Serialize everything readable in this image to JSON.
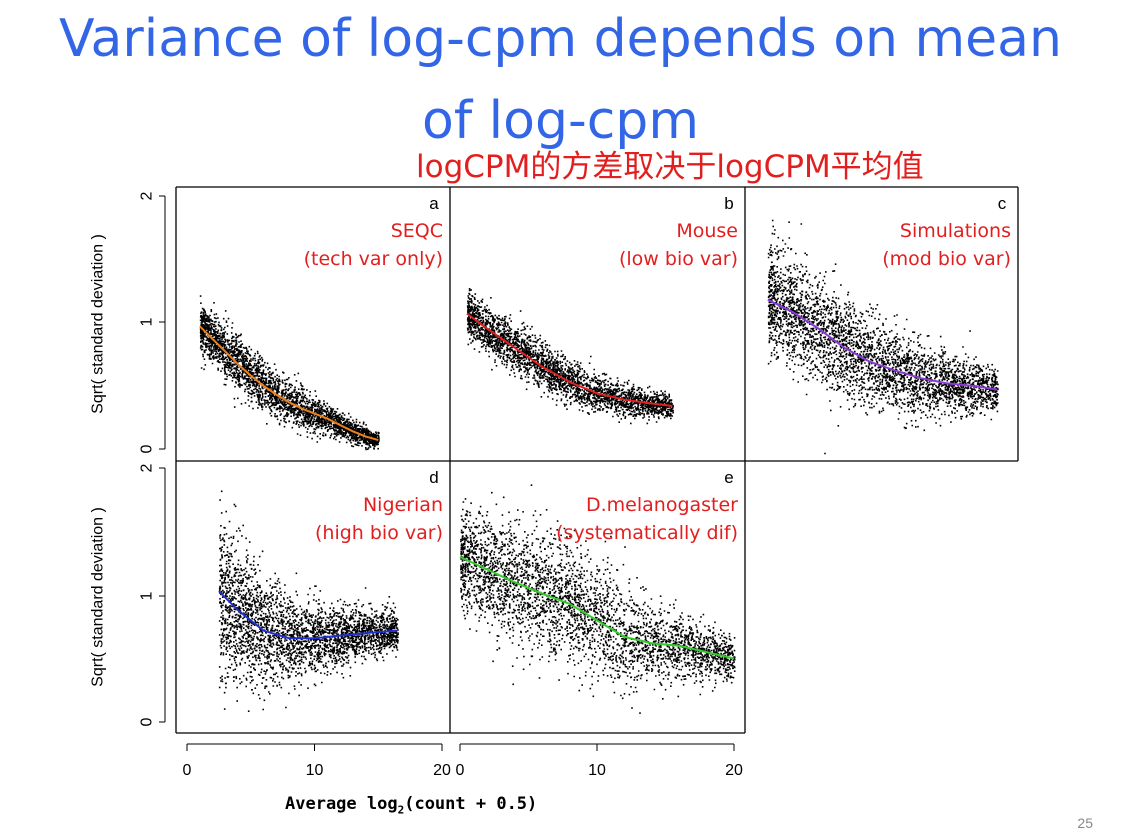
{
  "title_line1": "Variance of log-cpm depends on mean",
  "title_line2": "of log-cpm",
  "subtitle": "logCPM的方差取决于logCPM平均值",
  "xlabel_text": "Average log",
  "xlabel_sub": "2",
  "xlabel_rest": "(count + 0.5)",
  "ylabel": "Sqrt( standard deviation )",
  "page_number": "25",
  "colors": {
    "title": "#3366e6",
    "annotation": "#e31e1e"
  },
  "chart_data": [
    {
      "type": "scatter",
      "panel": "a",
      "label_line1": "SEQC",
      "label_line2": "(tech var only)",
      "xlim": [
        0,
        20
      ],
      "ylim": [
        0,
        2
      ],
      "xticks": [
        0,
        10,
        20
      ],
      "yticks": [
        "0",
        "1",
        "2"
      ],
      "trend_color": "#f07f1a",
      "trend": [
        [
          1,
          0.97
        ],
        [
          2,
          0.87
        ],
        [
          3,
          0.77
        ],
        [
          4,
          0.67
        ],
        [
          5,
          0.58
        ],
        [
          6,
          0.5
        ],
        [
          7,
          0.43
        ],
        [
          8,
          0.37
        ],
        [
          9,
          0.32
        ],
        [
          10,
          0.28
        ],
        [
          11,
          0.24
        ],
        [
          12,
          0.19
        ],
        [
          13,
          0.14
        ],
        [
          14,
          0.1
        ],
        [
          15,
          0.07
        ]
      ],
      "spread": [
        [
          1,
          0.09
        ],
        [
          4,
          0.11
        ],
        [
          8,
          0.08
        ],
        [
          12,
          0.05
        ],
        [
          15,
          0.03
        ]
      ],
      "xrange": [
        1,
        15
      ],
      "n_points": 3000
    },
    {
      "type": "scatter",
      "panel": "b",
      "label_line1": "Mouse",
      "label_line2": "(low bio var)",
      "xlim": [
        0,
        20
      ],
      "ylim": [
        0,
        2
      ],
      "xticks": [
        0,
        10,
        20
      ],
      "yticks": [
        "0",
        "1",
        "2"
      ],
      "trend_color": "#e02020",
      "trend": [
        [
          0.5,
          1.07
        ],
        [
          2,
          0.95
        ],
        [
          4,
          0.8
        ],
        [
          6,
          0.65
        ],
        [
          8,
          0.53
        ],
        [
          10,
          0.44
        ],
        [
          12,
          0.39
        ],
        [
          14,
          0.36
        ],
        [
          15.5,
          0.34
        ]
      ],
      "spread": [
        [
          0.5,
          0.09
        ],
        [
          4,
          0.1
        ],
        [
          8,
          0.08
        ],
        [
          12,
          0.06
        ],
        [
          15.5,
          0.04
        ]
      ],
      "xrange": [
        0.5,
        15.5
      ],
      "n_points": 3000
    },
    {
      "type": "scatter",
      "panel": "c",
      "label_line1": "Simulations",
      "label_line2": "(mod bio var)",
      "xlim": [
        0,
        20
      ],
      "ylim": [
        0,
        2
      ],
      "xticks": [
        0,
        10,
        20
      ],
      "yticks": [
        "0",
        "1",
        "2"
      ],
      "trend_color": "#8a3bd6",
      "trend": [
        [
          1,
          1.18
        ],
        [
          3,
          1.08
        ],
        [
          5,
          0.95
        ],
        [
          7,
          0.8
        ],
        [
          9,
          0.69
        ],
        [
          11,
          0.62
        ],
        [
          13,
          0.56
        ],
        [
          15,
          0.52
        ],
        [
          17,
          0.5
        ],
        [
          19,
          0.47
        ]
      ],
      "spread": [
        [
          1,
          0.22
        ],
        [
          5,
          0.2
        ],
        [
          10,
          0.17
        ],
        [
          15,
          0.12
        ],
        [
          19,
          0.08
        ]
      ],
      "xrange": [
        1,
        19
      ],
      "n_points": 3500
    },
    {
      "type": "scatter",
      "panel": "d",
      "label_line1": "Nigerian",
      "label_line2": "(high bio var)",
      "xlim": [
        0,
        20
      ],
      "ylim": [
        0,
        2
      ],
      "xticks": [
        0,
        10,
        20
      ],
      "yticks": [
        "0",
        "1",
        "2"
      ],
      "trend_color": "#1f2fd1",
      "trend": [
        [
          2.5,
          1.03
        ],
        [
          4,
          0.88
        ],
        [
          6,
          0.72
        ],
        [
          8,
          0.66
        ],
        [
          10,
          0.66
        ],
        [
          12,
          0.68
        ],
        [
          14,
          0.7
        ],
        [
          16.5,
          0.72
        ]
      ],
      "spread": [
        [
          2.5,
          0.3
        ],
        [
          5,
          0.25
        ],
        [
          9,
          0.15
        ],
        [
          13,
          0.1
        ],
        [
          16.5,
          0.08
        ]
      ],
      "xrange": [
        2.5,
        16.5
      ],
      "n_points": 3000
    },
    {
      "type": "scatter",
      "panel": "e",
      "label_line1": "D.melanogaster",
      "label_line2": "(systematically dif)",
      "xlim": [
        0,
        20
      ],
      "ylim": [
        0,
        2
      ],
      "xticks": [
        0,
        10,
        20
      ],
      "yticks": [
        "0",
        "1",
        "2"
      ],
      "trend_color": "#33cc2a",
      "trend": [
        [
          0,
          1.3
        ],
        [
          2,
          1.2
        ],
        [
          4,
          1.1
        ],
        [
          6,
          1.01
        ],
        [
          8,
          0.93
        ],
        [
          10,
          0.8
        ],
        [
          12,
          0.67
        ],
        [
          14,
          0.62
        ],
        [
          16,
          0.6
        ],
        [
          18,
          0.55
        ],
        [
          20,
          0.5
        ]
      ],
      "spread": [
        [
          0,
          0.2
        ],
        [
          5,
          0.25
        ],
        [
          10,
          0.22
        ],
        [
          15,
          0.14
        ],
        [
          20,
          0.08
        ]
      ],
      "xrange": [
        0,
        20
      ],
      "n_points": 3500
    }
  ]
}
